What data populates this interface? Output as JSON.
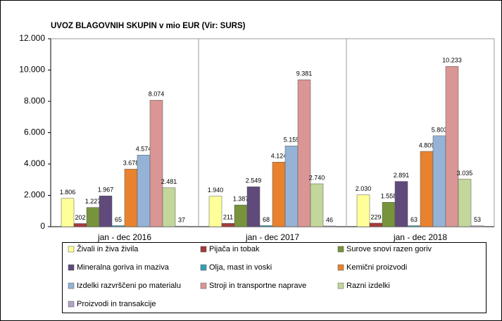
{
  "chart_data": {
    "type": "bar",
    "title": "UVOZ BLAGOVNIH SKUPIN v mio EUR (Vir: SURS)",
    "categories": [
      "jan - dec 2016",
      "jan - dec 2017",
      "jan - dec 2018"
    ],
    "ylim": [
      0,
      12000
    ],
    "yticks": [
      0,
      {
        "value": 2000,
        "label": "2.000"
      },
      {
        "value": 4000,
        "label": "4.000"
      },
      {
        "value": 6000,
        "label": "6.000"
      },
      {
        "value": 8000,
        "label": "8.000"
      },
      {
        "value": 10000,
        "label": "10.000"
      },
      {
        "value": 12000,
        "label": "12.000"
      }
    ],
    "grid": false,
    "legend": "bottom",
    "series": [
      {
        "name": "Živali in živa živila",
        "color": "#ffff99",
        "values": [
          1806,
          1940,
          2030
        ],
        "value_labels": [
          "1.806",
          "1.940",
          "2.030"
        ]
      },
      {
        "name": "Pijača in tobak",
        "color": "#a33b3b",
        "values": [
          202,
          211,
          229
        ],
        "value_labels": [
          "202",
          "211",
          "229"
        ]
      },
      {
        "name": "Surove snovi razen goriv",
        "color": "#77933c",
        "values": [
          1227,
          1387,
          1558
        ],
        "value_labels": [
          "1.227",
          "1.387",
          "1.558"
        ]
      },
      {
        "name": "Mineralna goriva in maziva",
        "color": "#604a7b",
        "values": [
          1967,
          2549,
          2891
        ],
        "value_labels": [
          "1.967",
          "2.549",
          "2.891"
        ]
      },
      {
        "name": "Olja, mast in voski",
        "color": "#31a0b5",
        "values": [
          65,
          68,
          63
        ],
        "value_labels": [
          "65",
          "68",
          "63"
        ]
      },
      {
        "name": "Kemični proizvodi",
        "color": "#e8822e",
        "values": [
          3678,
          4124,
          4809
        ],
        "value_labels": [
          "3.678",
          "4.124",
          "4.809"
        ]
      },
      {
        "name": "Izdelki razvrščeni po materialu",
        "color": "#95b3d7",
        "values": [
          4574,
          5159,
          5803
        ],
        "value_labels": [
          "4.574",
          "5.159",
          "5.803"
        ]
      },
      {
        "name": "Stroji in transportne naprave",
        "color": "#d99694",
        "values": [
          8074,
          9381,
          10233
        ],
        "value_labels": [
          "8.074",
          "9.381",
          "10.233"
        ]
      },
      {
        "name": "Razni izdelki",
        "color": "#c3d69b",
        "values": [
          2481,
          2740,
          3035
        ],
        "value_labels": [
          "2.481",
          "2.740",
          "3.035"
        ]
      },
      {
        "name": "Proizvodi in transakcije",
        "color": "#b3a2c7",
        "values": [
          37,
          46,
          53
        ],
        "value_labels": [
          "37",
          "46",
          "53"
        ]
      }
    ]
  }
}
